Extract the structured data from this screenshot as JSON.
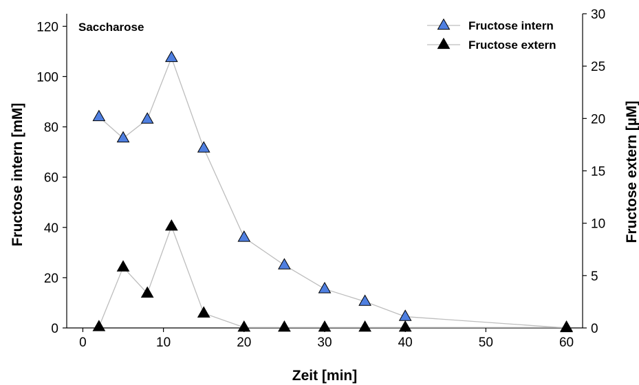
{
  "chart_data": {
    "type": "line",
    "annotation": "Saccharose",
    "xlabel": "Zeit [min]",
    "ylabel_left": "Fructose intern [mM]",
    "ylabel_right": "Fructose extern [µM]",
    "xlim": [
      -2,
      62
    ],
    "ylim_left": [
      0,
      125
    ],
    "ylim_right": [
      0,
      30
    ],
    "x_ticks": [
      0,
      10,
      20,
      30,
      40,
      50,
      60
    ],
    "y_left_ticks": [
      0,
      20,
      40,
      60,
      80,
      100,
      120
    ],
    "y_right_ticks": [
      0,
      5,
      10,
      15,
      20,
      25,
      30
    ],
    "grid": false,
    "legend_position": "top-right",
    "series": [
      {
        "name": "Fructose intern",
        "axis": "left",
        "marker": "triangle",
        "color": "#4f7fe0",
        "x": [
          2,
          5,
          8,
          11,
          15,
          20,
          25,
          30,
          35,
          40,
          60
        ],
        "y": [
          84,
          75.5,
          83,
          107.5,
          71.5,
          36,
          25,
          15.5,
          10.5,
          4.5,
          0
        ]
      },
      {
        "name": "Fructose extern",
        "axis": "right",
        "marker": "triangle",
        "color": "#000000",
        "x": [
          2,
          5,
          8,
          11,
          15,
          20,
          25,
          30,
          35,
          40,
          60
        ],
        "y": [
          0.1,
          5.8,
          3.3,
          9.7,
          1.4,
          0.05,
          0.05,
          0.05,
          0.05,
          0.05,
          0.05
        ]
      }
    ],
    "line_color": "#bdbdbd"
  }
}
